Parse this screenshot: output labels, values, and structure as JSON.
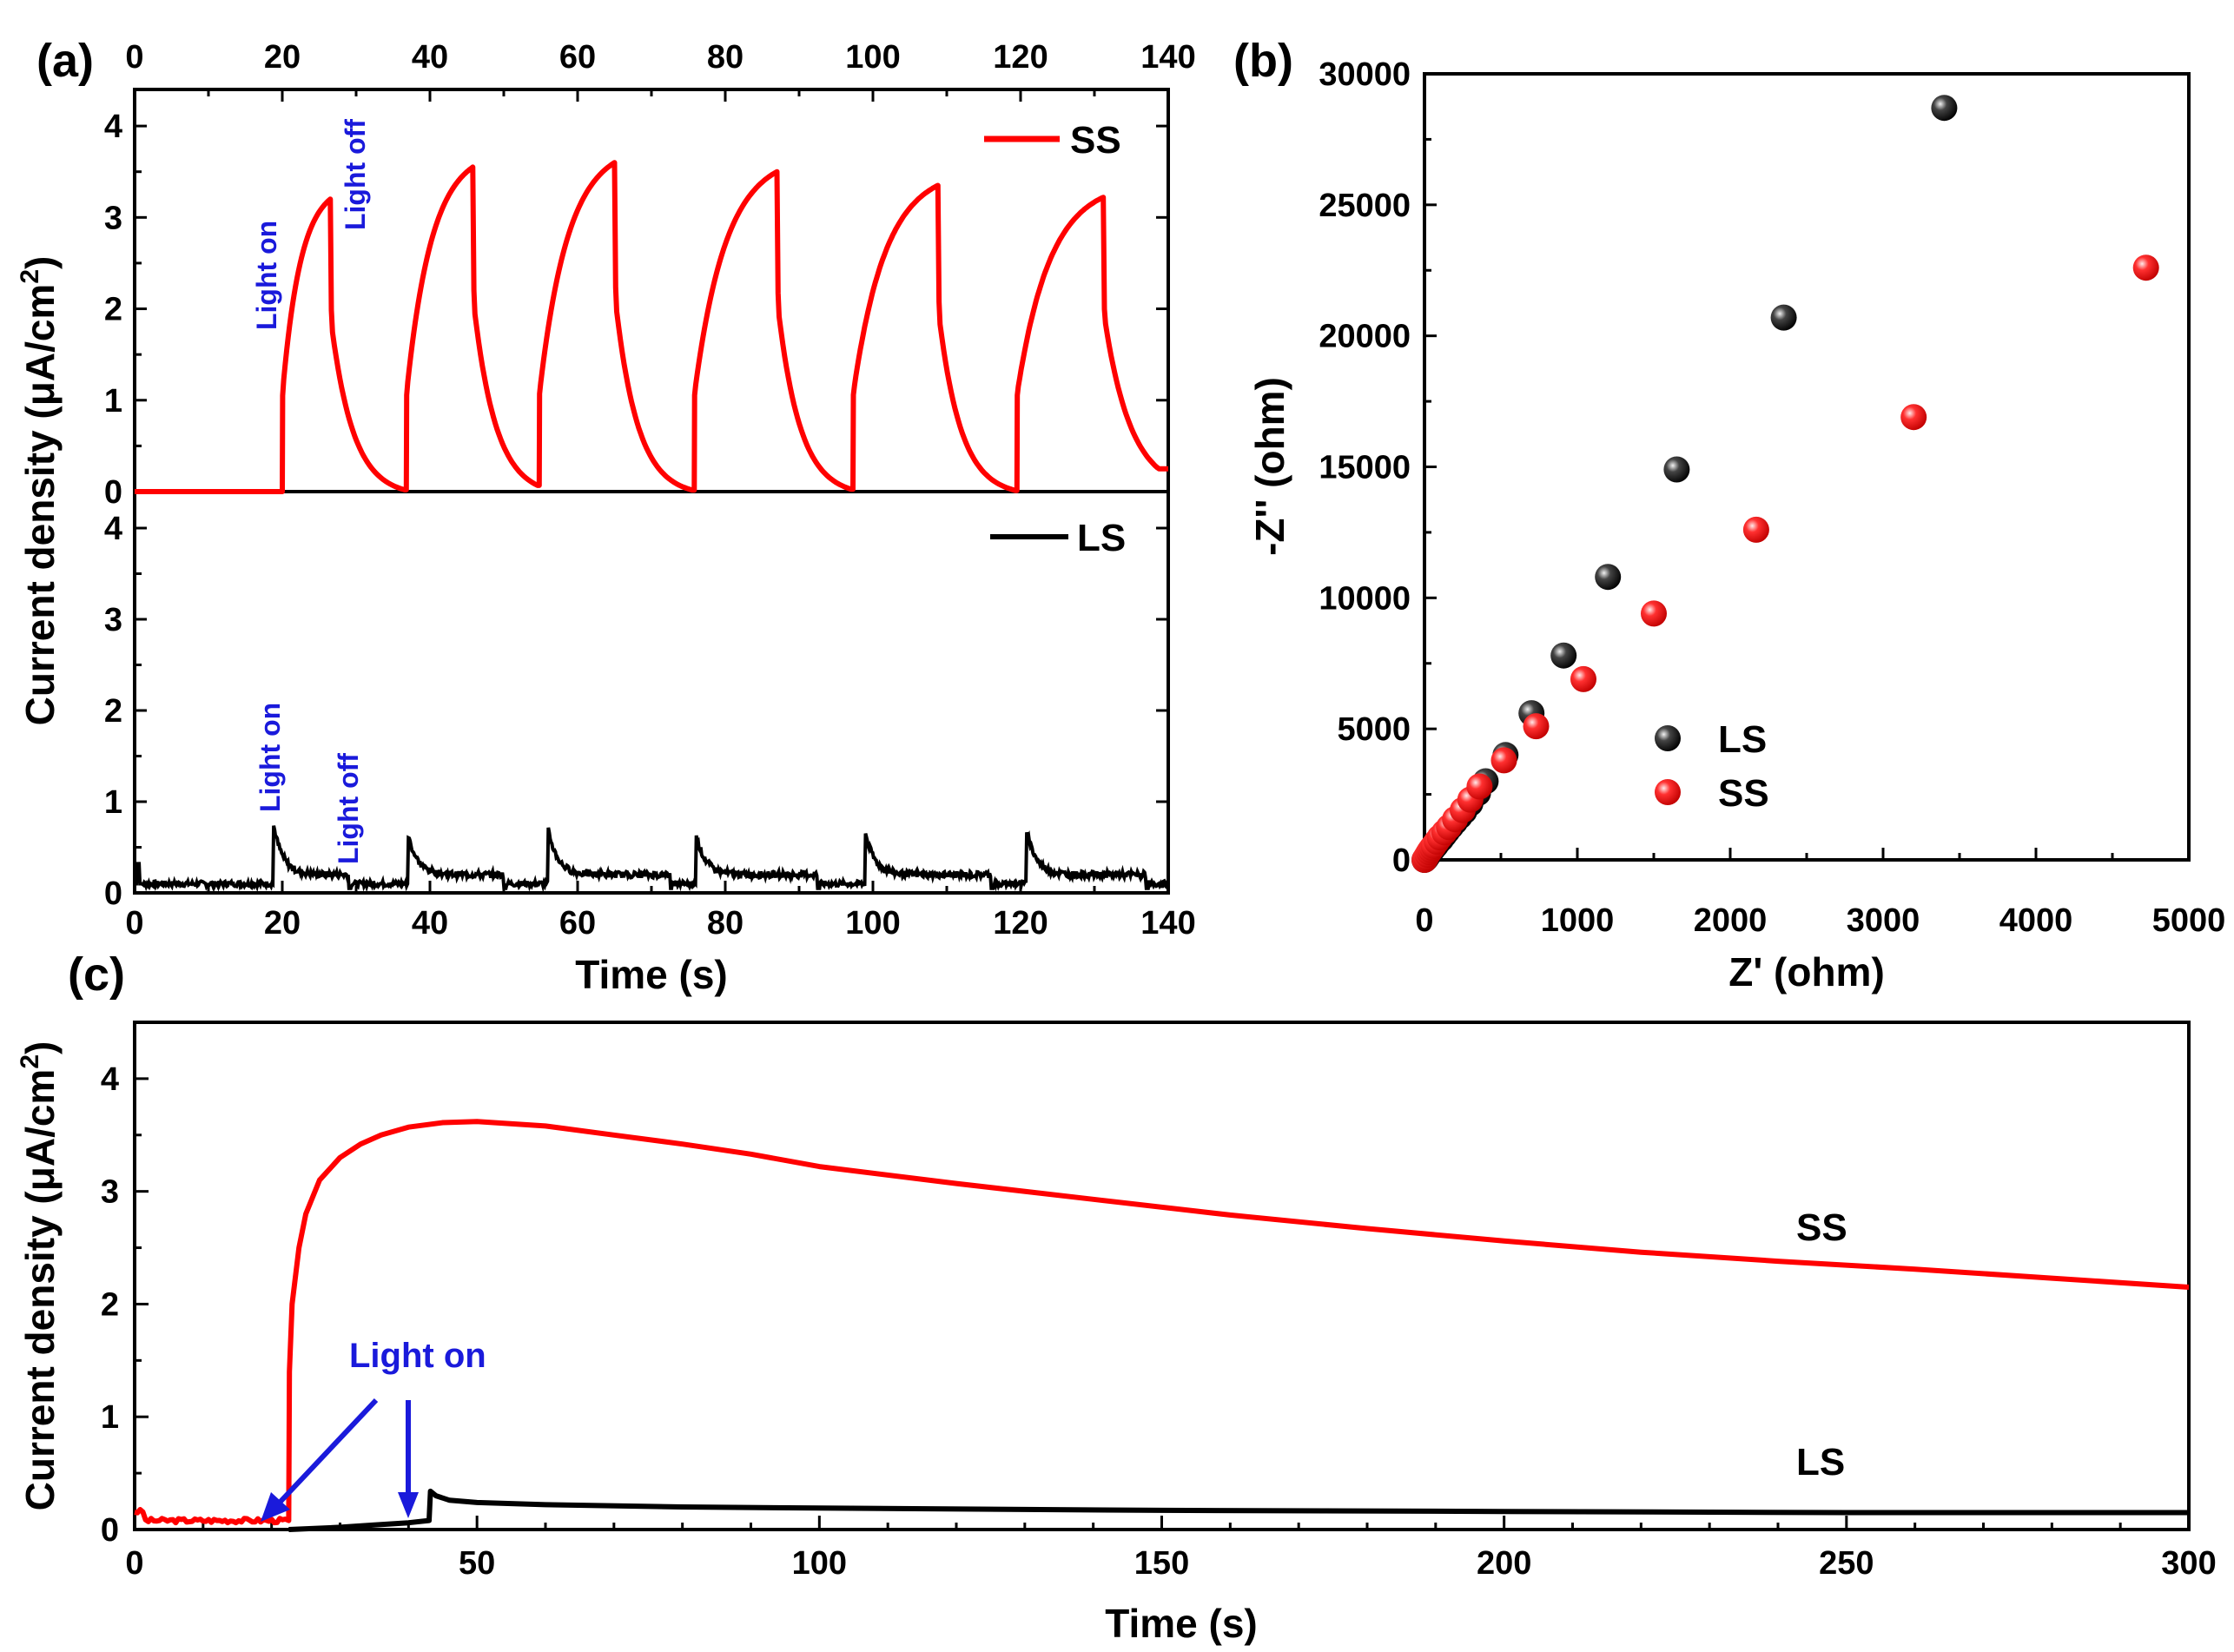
{
  "chart_data": [
    {
      "id": "a",
      "type": "line",
      "panel_label": "(a)",
      "xlabel": "Time (s)",
      "ylabel": "Current density (μA/cm²)",
      "ylabel_parts": {
        "main": "Current density (μA/cm",
        "sup": "2",
        "close": ")"
      },
      "xlim": [
        0,
        140
      ],
      "ylim": [
        0,
        4.4
      ],
      "x_ticks": [
        "0",
        "20",
        "40",
        "60",
        "80",
        "100",
        "120",
        "140"
      ],
      "x_tick_values": [
        0,
        20,
        40,
        60,
        80,
        100,
        120,
        140
      ],
      "y_ticks": [
        "0",
        "1",
        "2",
        "3",
        "4"
      ],
      "y_tick_values": [
        0,
        1,
        2,
        3,
        4
      ],
      "subpanels": [
        {
          "name": "SS",
          "legend": "SS",
          "color": "#ff0000",
          "annotation_on": "Light on",
          "annotation_off": "Light off",
          "cycles": [
            {
              "on": 20.0,
              "off": 26.5,
              "peak": 3.2
            },
            {
              "on": 36.8,
              "off": 45.8,
              "peak": 3.55
            },
            {
              "on": 54.8,
              "off": 65.0,
              "peak": 3.6
            },
            {
              "on": 75.8,
              "off": 87.0,
              "peak": 3.5
            },
            {
              "on": 97.3,
              "off": 108.8,
              "peak": 3.35
            },
            {
              "on": 119.5,
              "off": 131.2,
              "peak": 3.22
            }
          ],
          "end_value": 0.25
        },
        {
          "name": "LS",
          "legend": "LS",
          "color": "#000000",
          "annotation_on": "Light on",
          "annotation_off": "Light off",
          "baseline": 0.1,
          "cycles": [
            {
              "on": 18.8,
              "off": 29.0,
              "peak": 0.75
            },
            {
              "on": 37.0,
              "off": 50.0,
              "peak": 0.65
            },
            {
              "on": 56.0,
              "off": 72.5,
              "peak": 0.7
            },
            {
              "on": 76.0,
              "off": 92.5,
              "peak": 0.65
            },
            {
              "on": 99.0,
              "off": 116.0,
              "peak": 0.65
            },
            {
              "on": 120.8,
              "off": 137.0,
              "peak": 0.7
            }
          ]
        }
      ]
    },
    {
      "id": "b",
      "type": "scatter",
      "panel_label": "(b)",
      "xlabel": "Z' (ohm)",
      "ylabel": "-Z'' (ohm)",
      "xlim": [
        0,
        5000
      ],
      "ylim": [
        0,
        30000
      ],
      "x_ticks": [
        "0",
        "1000",
        "2000",
        "3000",
        "4000",
        "5000"
      ],
      "x_tick_values": [
        0,
        1000,
        2000,
        3000,
        4000,
        5000
      ],
      "y_ticks": [
        "0",
        "5000",
        "10000",
        "15000",
        "20000",
        "25000",
        "30000"
      ],
      "y_tick_values": [
        0,
        5000,
        10000,
        15000,
        20000,
        25000,
        30000
      ],
      "series": [
        {
          "name": "LS",
          "color": "#000000",
          "x": [
            0,
            5,
            10,
            15,
            20,
            30,
            40,
            50,
            60,
            75,
            90,
            110,
            130,
            150,
            175,
            200,
            230,
            260,
            300,
            350,
            400,
            530,
            700,
            910,
            1200,
            1650,
            2350,
            3400
          ],
          "y": [
            0,
            30,
            60,
            100,
            150,
            220,
            300,
            380,
            460,
            560,
            680,
            800,
            950,
            1100,
            1280,
            1450,
            1650,
            1850,
            2150,
            2550,
            3000,
            4000,
            5600,
            7800,
            10800,
            14900,
            20700,
            28700
          ]
        },
        {
          "name": "SS",
          "color": "#ff0000",
          "x": [
            0,
            5,
            10,
            20,
            30,
            40,
            50,
            60,
            80,
            100,
            130,
            160,
            200,
            250,
            300,
            360,
            520,
            730,
            1040,
            1500,
            2170,
            3200,
            4720
          ],
          "y": [
            0,
            50,
            100,
            200,
            300,
            380,
            460,
            540,
            700,
            860,
            1050,
            1250,
            1550,
            1900,
            2300,
            2800,
            3800,
            5100,
            6900,
            9400,
            12600,
            16900,
            22600
          ]
        }
      ]
    },
    {
      "id": "c",
      "type": "line",
      "panel_label": "(c)",
      "xlabel": "Time (s)",
      "ylabel": "Current density (μA/cm²)",
      "ylabel_parts": {
        "main": "Current density (μA/cm",
        "sup": "2",
        "close": ")"
      },
      "xlim": [
        0,
        300
      ],
      "ylim": [
        0,
        4.5
      ],
      "x_ticks": [
        "0",
        "50",
        "100",
        "150",
        "200",
        "250",
        "300"
      ],
      "x_tick_values": [
        0,
        50,
        100,
        150,
        200,
        250,
        300
      ],
      "y_ticks": [
        "0",
        "1",
        "2",
        "3",
        "4"
      ],
      "y_tick_values": [
        0,
        1,
        2,
        3,
        4
      ],
      "annotation": "Light on",
      "series": [
        {
          "name": "SS",
          "label": "SS",
          "color": "#ff0000",
          "light_on": 22.5,
          "pre_value": 0.08,
          "x": [
            22.5,
            22.6,
            23,
            24,
            25,
            27,
            30,
            33,
            36,
            40,
            45,
            50,
            60,
            70,
            80,
            90,
            100,
            120,
            140,
            160,
            180,
            200,
            220,
            240,
            260,
            280,
            300
          ],
          "y": [
            0.08,
            1.4,
            2.0,
            2.5,
            2.8,
            3.1,
            3.3,
            3.42,
            3.5,
            3.57,
            3.61,
            3.62,
            3.58,
            3.5,
            3.42,
            3.33,
            3.22,
            3.07,
            2.93,
            2.79,
            2.67,
            2.56,
            2.46,
            2.38,
            2.31,
            2.23,
            2.15
          ]
        },
        {
          "name": "LS",
          "label": "LS",
          "color": "#000000",
          "light_on": 43.0,
          "x": [
            22.5,
            30,
            35,
            40,
            43,
            43.2,
            44,
            46,
            50,
            60,
            80,
            100,
            150,
            200,
            250,
            300
          ],
          "y": [
            0.0,
            0.02,
            0.04,
            0.06,
            0.08,
            0.34,
            0.3,
            0.26,
            0.24,
            0.22,
            0.2,
            0.19,
            0.17,
            0.16,
            0.15,
            0.15
          ]
        }
      ]
    }
  ]
}
